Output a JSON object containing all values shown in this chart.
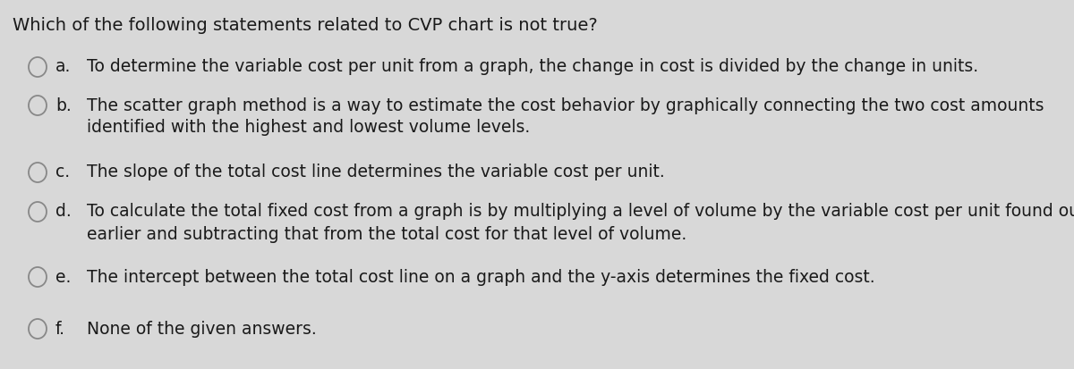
{
  "background_color": "#d8d8d8",
  "title": "Which of the following statements related to CVP chart is not true?",
  "text_color": "#1a1a1a",
  "circle_edge_color": "#888888",
  "circle_face_color": "#d8d8d8",
  "title_fontsize": 14.0,
  "text_fontsize": 13.5,
  "label_fontsize": 13.5,
  "options": [
    {
      "label": "a.",
      "line1": "To determine the variable cost per unit from a graph, the change in cost is divided by the change in units.",
      "line2": null
    },
    {
      "label": "b.",
      "line1": "The scatter graph method is a way to estimate the cost behavior by graphically connecting the two cost amounts",
      "line2": "identified with the highest and lowest volume levels."
    },
    {
      "label": "c.",
      "line1": "The slope of the total cost line determines the variable cost per unit.",
      "line2": null
    },
    {
      "label": "d.",
      "line1": "To calculate the total fixed cost from a graph is by multiplying a level of volume by the variable cost per unit found out",
      "line2": "earlier and subtracting that from the total cost for that level of volume."
    },
    {
      "label": "e.",
      "line1": "The intercept between the total cost line on a graph and the y-axis determines the fixed cost.",
      "line2": null
    },
    {
      "label": "f.",
      "line1": "None of the given answers.",
      "line2": null
    }
  ]
}
